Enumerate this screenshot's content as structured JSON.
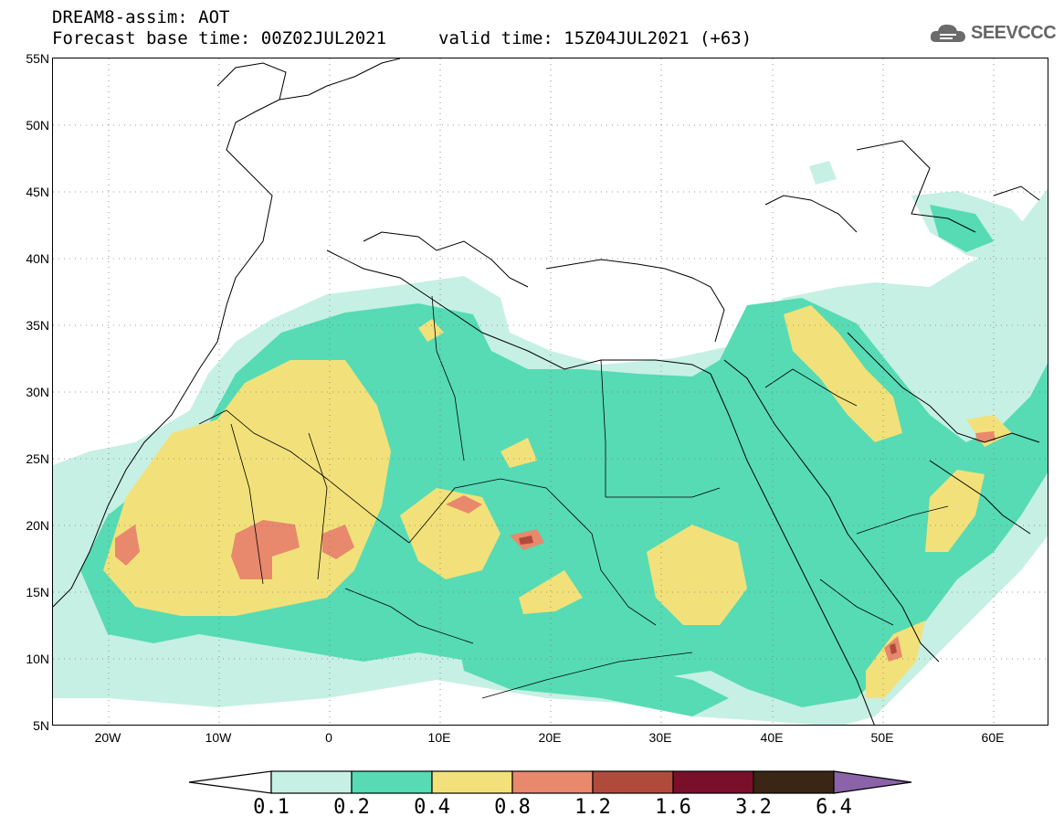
{
  "header": {
    "title": "DREAM8-assim: AOT",
    "base_time": "Forecast base time: 00Z02JUL2021",
    "valid_time": "valid time: 15Z04JUL2021 (+63)",
    "logo_text": "SEEVCCC",
    "logo_icon": "cloud-icon"
  },
  "map": {
    "lat_labels": [
      "55N",
      "50N",
      "45N",
      "40N",
      "35N",
      "30N",
      "25N",
      "20N",
      "15N",
      "10N",
      "5N"
    ],
    "lon_labels": [
      "20W",
      "10W",
      "0",
      "10E",
      "20E",
      "30E",
      "40E",
      "50E",
      "60E"
    ],
    "lat_range": [
      5,
      55
    ],
    "lon_range": [
      -25,
      65
    ],
    "grid": "dotted",
    "field": "Aerosol Optical Thickness"
  },
  "colorbar": {
    "labels": [
      "0.1",
      "0.2",
      "0.4",
      "0.8",
      "1.2",
      "1.6",
      "3.2",
      "6.4"
    ],
    "colors": [
      "#ffffff",
      "#c6f0e3",
      "#56dbb4",
      "#f2e17a",
      "#e8886c",
      "#b04b3c",
      "#7a0f2b",
      "#3a2614",
      "#8a63a8"
    ]
  }
}
